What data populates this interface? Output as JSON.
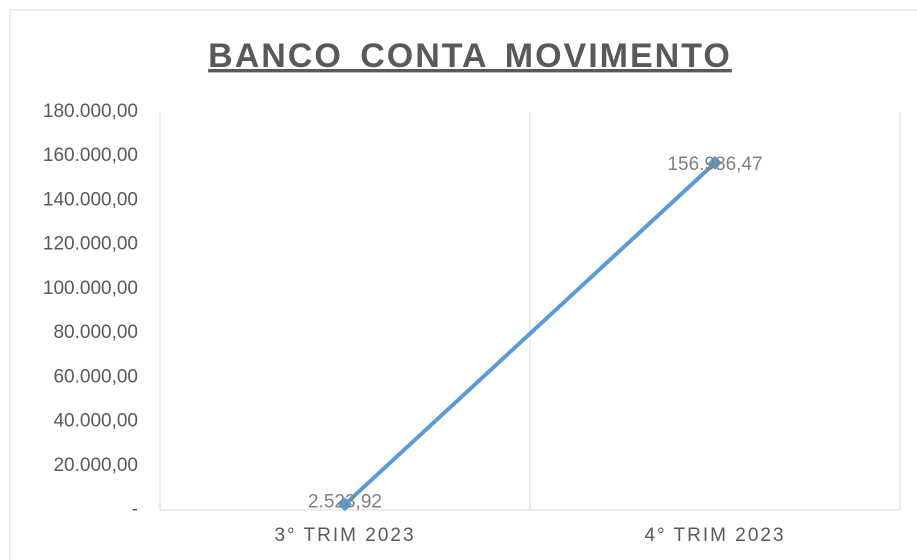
{
  "chart_data": {
    "type": "line",
    "title": "BANCO CONTA MOVIMENTO",
    "categories": [
      "3° TRIM 2023",
      "4° TRIM 2023"
    ],
    "series": [
      {
        "name": "BANCO CONTA MOVIMENTO",
        "color": "#5b9bd5",
        "values": [
          2523.92,
          156986.47
        ],
        "value_labels": [
          "2.523,92",
          "156.986,47"
        ]
      }
    ],
    "ylim": [
      0,
      180000
    ],
    "yticks": [
      {
        "value": 0,
        "label": "-"
      },
      {
        "value": 20000,
        "label": "20.000,00"
      },
      {
        "value": 40000,
        "label": "40.000,00"
      },
      {
        "value": 60000,
        "label": "60.000,00"
      },
      {
        "value": 80000,
        "label": "80.000,00"
      },
      {
        "value": 100000,
        "label": "100.000,00"
      },
      {
        "value": 120000,
        "label": "120.000,00"
      },
      {
        "value": 140000,
        "label": "140.000,00"
      },
      {
        "value": 160000,
        "label": "160.000,00"
      },
      {
        "value": 180000,
        "label": "180.000,00"
      }
    ],
    "grid": false
  }
}
